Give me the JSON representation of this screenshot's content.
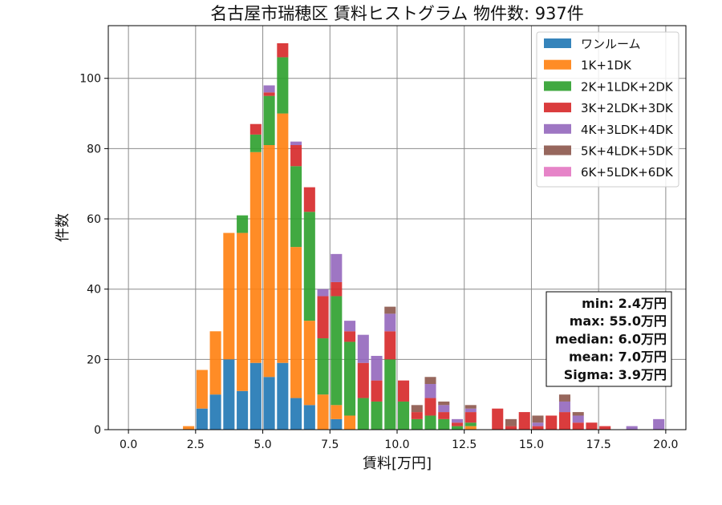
{
  "chart_data": {
    "type": "bar",
    "stacked": true,
    "title": "名古屋市瑞穂区 賃料ヒストグラム 物件数: 937件",
    "xlabel": "賃料[万円]",
    "ylabel": "件数",
    "xlim": [
      -0.75,
      20.75
    ],
    "ylim": [
      0,
      115
    ],
    "xticks": [
      "0.0",
      "2.5",
      "5.0",
      "7.5",
      "10.0",
      "12.5",
      "15.0",
      "17.5",
      "20.0"
    ],
    "yticks": [
      "0",
      "20",
      "40",
      "60",
      "80",
      "100"
    ],
    "grid": true,
    "legend_position": "top-right",
    "bin_width": 0.5,
    "x": [
      2.0,
      2.5,
      3.0,
      3.5,
      4.0,
      4.5,
      5.0,
      5.5,
      6.0,
      6.5,
      7.0,
      7.5,
      8.0,
      8.5,
      9.0,
      9.5,
      10.0,
      10.5,
      11.0,
      11.5,
      12.0,
      12.5,
      13.0,
      13.5,
      14.0,
      14.5,
      15.0,
      15.5,
      16.0,
      16.5,
      17.0,
      17.5,
      18.0,
      18.5,
      19.0,
      19.5
    ],
    "series": [
      {
        "name": "ワンルーム",
        "color": "#1f77b4",
        "values": [
          0,
          6,
          10,
          20,
          11,
          19,
          15,
          19,
          9,
          7,
          0,
          3,
          0,
          0,
          0,
          0,
          0,
          0,
          0,
          0,
          0,
          0,
          0,
          0,
          0,
          0,
          0,
          0,
          0,
          0,
          0,
          0,
          0,
          0,
          0,
          0
        ]
      },
      {
        "name": "1K+1DK",
        "color": "#ff7f0e",
        "values": [
          1,
          11,
          18,
          36,
          45,
          60,
          66,
          71,
          43,
          24,
          10,
          4,
          4,
          0,
          0,
          0,
          0,
          0,
          0,
          0,
          0,
          1,
          0,
          0,
          0,
          0,
          0,
          0,
          0,
          0,
          0,
          0,
          0,
          0,
          0,
          0
        ]
      },
      {
        "name": "2K+1LDK+2DK",
        "color": "#2ca02c",
        "values": [
          0,
          0,
          0,
          0,
          5,
          5,
          14,
          16,
          23,
          31,
          16,
          31,
          21,
          9,
          8,
          20,
          8,
          3,
          4,
          3,
          1,
          1,
          0,
          0,
          0,
          0,
          0,
          0,
          0,
          0,
          0,
          0,
          0,
          0,
          0,
          0
        ]
      },
      {
        "name": "3K+2LDK+3DK",
        "color": "#d62728",
        "values": [
          0,
          0,
          0,
          0,
          0,
          3,
          1,
          4,
          6,
          7,
          12,
          4,
          3,
          10,
          6,
          8,
          6,
          2,
          5,
          2,
          1,
          3,
          0,
          6,
          1,
          5,
          1,
          4,
          5,
          2,
          2,
          1,
          0,
          0,
          0,
          0
        ]
      },
      {
        "name": "4K+3LDK+4DK",
        "color": "#9467bd",
        "values": [
          0,
          0,
          0,
          0,
          0,
          0,
          2,
          0,
          1,
          0,
          2,
          8,
          3,
          8,
          7,
          5,
          0,
          0,
          4,
          2,
          1,
          1,
          0,
          0,
          0,
          0,
          1,
          0,
          3,
          2,
          0,
          0,
          0,
          1,
          0,
          3
        ]
      },
      {
        "name": "5K+4LDK+5DK",
        "color": "#8c564b",
        "values": [
          0,
          0,
          0,
          0,
          0,
          0,
          0,
          0,
          0,
          0,
          0,
          0,
          0,
          0,
          0,
          2,
          0,
          2,
          2,
          1,
          0,
          1,
          0,
          0,
          2,
          0,
          2,
          0,
          2,
          1,
          0,
          0,
          0,
          0,
          0,
          0
        ]
      },
      {
        "name": "6K+5LDK+6DK",
        "color": "#e377c2",
        "values": [
          0,
          0,
          0,
          0,
          0,
          0,
          0,
          0,
          0,
          0,
          0,
          0,
          0,
          0,
          0,
          0,
          0,
          0,
          0,
          0,
          0,
          0,
          0,
          0,
          0,
          0,
          0,
          0,
          0,
          0,
          0,
          0,
          0,
          0,
          0,
          0
        ]
      }
    ],
    "stats": [
      "min: 2.4万円",
      "max: 55.0万円",
      "median: 6.0万円",
      "mean: 7.0万円",
      "Sigma: 3.9万円"
    ]
  }
}
